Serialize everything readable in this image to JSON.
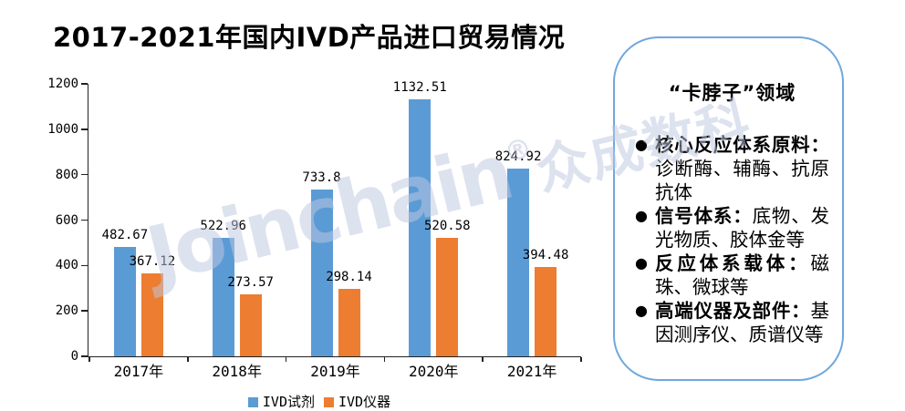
{
  "title": "2017-2021年国内IVD产品进口贸易情况",
  "chart_data": {
    "type": "bar",
    "categories": [
      "2017年",
      "2018年",
      "2019年",
      "2020年",
      "2021年"
    ],
    "series": [
      {
        "name": "IVD试剂",
        "color": "#5B9BD5",
        "values": [
          482.67,
          522.96,
          733.8,
          1132.51,
          824.92
        ]
      },
      {
        "name": "IVD仪器",
        "color": "#ED7D31",
        "values": [
          367.12,
          273.57,
          298.14,
          520.58,
          394.48
        ]
      }
    ],
    "data_labels": [
      "482.67",
      "522.96",
      "733.8",
      "1132.51",
      "824.92",
      "367.12",
      "273.57",
      "298.14",
      "520.58",
      "394.48"
    ],
    "ylim": [
      0,
      1200
    ],
    "yticks": [
      0,
      200,
      400,
      600,
      800,
      1000,
      1200
    ],
    "grid": false,
    "legend_position": "bottom",
    "title": "2017-2021年国内IVD产品进口贸易情况"
  },
  "panel": {
    "title": "“卡脖子”领域",
    "border_color": "#6FA8DC",
    "bullet_glyph": "●",
    "bullets": [
      {
        "head": "核心反应体系原料：",
        "body": "诊断酶、辅酶、抗原抗体"
      },
      {
        "head": "信号体系：",
        "body": "底物、发光物质、胶体金等"
      },
      {
        "head": "反应体系载体：",
        "body": "磁珠、微球等"
      },
      {
        "head": "高端仪器及部件：",
        "body": "基因测序仪、质谱仪等"
      }
    ]
  },
  "watermark": {
    "text_latin": "Joinchain",
    "reg_mark": "®",
    "text_cjk": "众成数科",
    "color": "rgba(190,200,225,0.52)"
  },
  "colors": {
    "series_blue": "#5B9BD5",
    "series_orange": "#ED7D31",
    "axis": "#222222"
  }
}
